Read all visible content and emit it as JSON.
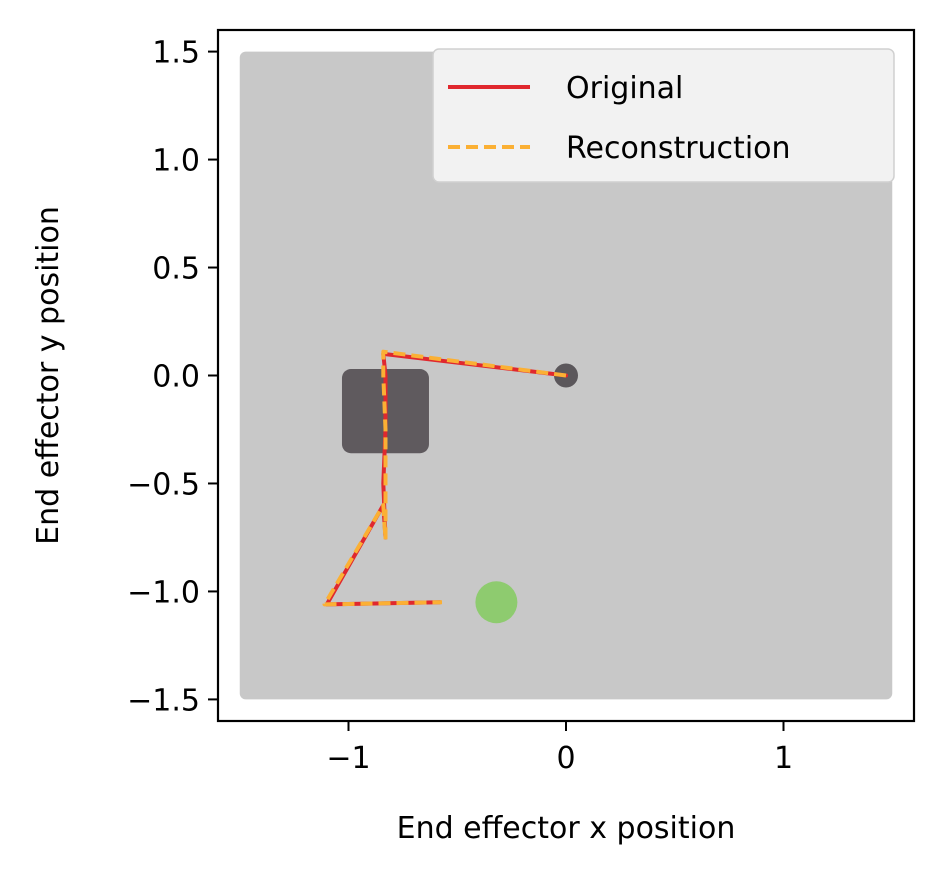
{
  "chart_data": {
    "type": "line",
    "title": "",
    "xlabel": "End effector x position",
    "ylabel": "End effector y position",
    "xlim": [
      -1.6,
      1.6
    ],
    "ylim": [
      -1.6,
      1.6
    ],
    "xticks": [
      -1,
      0,
      1
    ],
    "xtick_labels": [
      "−1",
      "0",
      "1"
    ],
    "yticks": [
      1.5,
      1.0,
      0.5,
      0.0,
      -0.5,
      -1.0,
      -1.5
    ],
    "ytick_labels": [
      "1.5",
      "1.0",
      "0.5",
      "0.0",
      "−0.5",
      "−1.0",
      "−1.5"
    ],
    "grid": false,
    "legend_position": "top-right",
    "workspace": {
      "x": [
        -1.5,
        1.5
      ],
      "y": [
        -1.5,
        1.5
      ],
      "color": "#c8c8c8"
    },
    "obstacle": {
      "x": [
        -1.03,
        -0.63
      ],
      "y": [
        -0.36,
        0.03
      ],
      "color": "#5f5a5e"
    },
    "start": {
      "x": 0.0,
      "y": 0.0,
      "color": "#5b575b"
    },
    "goal": {
      "x": -0.32,
      "y": -1.05,
      "color": "#8ecb6f"
    },
    "series": [
      {
        "name": "Original",
        "color": "#e0282e",
        "style": "solid",
        "x": [
          0.0,
          -0.84,
          -0.83,
          -0.83,
          -0.84,
          -0.83,
          -0.84,
          -1.1,
          -0.58
        ],
        "y": [
          0.0,
          0.1,
          0.0,
          -0.25,
          -0.5,
          -0.75,
          -0.6,
          -1.06,
          -1.05
        ]
      },
      {
        "name": "Reconstruction",
        "color": "#fbb034",
        "style": "dashed",
        "x": [
          0.0,
          -0.84,
          -0.84,
          -0.83,
          -0.83,
          -0.83,
          -0.84,
          -1.11,
          -0.57
        ],
        "y": [
          0.0,
          0.11,
          0.0,
          -0.25,
          -0.5,
          -0.76,
          -0.6,
          -1.06,
          -1.05
        ]
      }
    ]
  }
}
